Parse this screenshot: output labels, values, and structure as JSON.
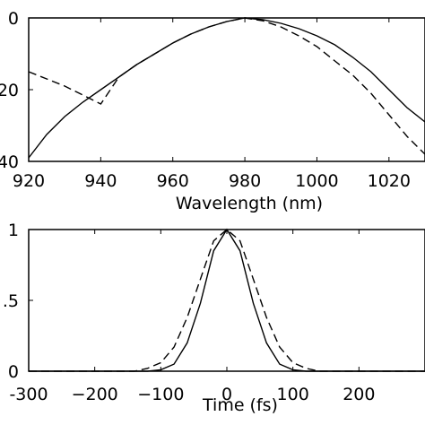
{
  "chart_data": [
    {
      "type": "line",
      "xlabel": "Wavelength (nm)",
      "ylabel": "",
      "xlim": [
        920,
        1030
      ],
      "ylim": [
        -40,
        0
      ],
      "xticks": [
        920,
        940,
        960,
        980,
        1000,
        1020
      ],
      "xtick_labels": [
        "920",
        "940",
        "960",
        "980",
        "1000",
        "1020"
      ],
      "yticks": [
        0,
        -20,
        -40
      ],
      "ytick_labels": [
        "0",
        "20",
        "40"
      ],
      "grid": false,
      "series": [
        {
          "style": "solid",
          "x": [
            920,
            925,
            930,
            935,
            940,
            945,
            950,
            955,
            960,
            965,
            970,
            975,
            980,
            985,
            990,
            995,
            1000,
            1005,
            1010,
            1015,
            1020,
            1025,
            1030
          ],
          "y": [
            -39,
            -32.5,
            -27.5,
            -23.5,
            -20,
            -16.5,
            -13,
            -10,
            -7,
            -4.5,
            -2.5,
            -1,
            0,
            -0.5,
            -1.5,
            -3,
            -5,
            -7.5,
            -11,
            -15,
            -20,
            -25,
            -29
          ]
        },
        {
          "style": "dashed",
          "x": [
            920,
            925,
            930,
            935,
            940,
            945,
            950,
            955,
            960,
            965,
            970,
            975,
            980,
            985,
            990,
            995,
            1000,
            1005,
            1010,
            1015,
            1020,
            1025,
            1030
          ],
          "y": [
            -15,
            -17,
            -19,
            -21.5,
            -24,
            -16.5,
            -13,
            -10,
            -7,
            -4.5,
            -2.5,
            -1,
            0,
            -0.8,
            -2.5,
            -5,
            -8,
            -12,
            -16,
            -21,
            -27,
            -33,
            -38
          ]
        }
      ]
    },
    {
      "type": "line",
      "xlabel": "Time (fs)",
      "ylabel": "",
      "xlim": [
        -300,
        300
      ],
      "ylim": [
        0,
        1
      ],
      "xticks": [
        -300,
        -200,
        -100,
        0,
        100,
        200
      ],
      "xtick_labels": [
        "-300",
        "−200",
        "−100",
        "0",
        "100",
        "200"
      ],
      "yticks": [
        0,
        0.5,
        1
      ],
      "ytick_labels": [
        "0",
        ".5",
        "1"
      ],
      "grid": false,
      "series": [
        {
          "style": "solid",
          "x": [
            -300,
            -120,
            -100,
            -80,
            -60,
            -40,
            -20,
            0,
            20,
            40,
            60,
            80,
            100,
            120,
            300
          ],
          "y": [
            0,
            0,
            0.01,
            0.05,
            0.2,
            0.48,
            0.85,
            1,
            0.85,
            0.48,
            0.2,
            0.05,
            0.01,
            0,
            0
          ]
        },
        {
          "style": "dashed",
          "x": [
            -300,
            -140,
            -120,
            -100,
            -80,
            -60,
            -40,
            -20,
            0,
            20,
            40,
            60,
            80,
            100,
            120,
            140,
            300
          ],
          "y": [
            0,
            0,
            0.02,
            0.06,
            0.17,
            0.38,
            0.65,
            0.92,
            1,
            0.92,
            0.65,
            0.38,
            0.17,
            0.06,
            0.02,
            0,
            0
          ]
        }
      ]
    }
  ]
}
